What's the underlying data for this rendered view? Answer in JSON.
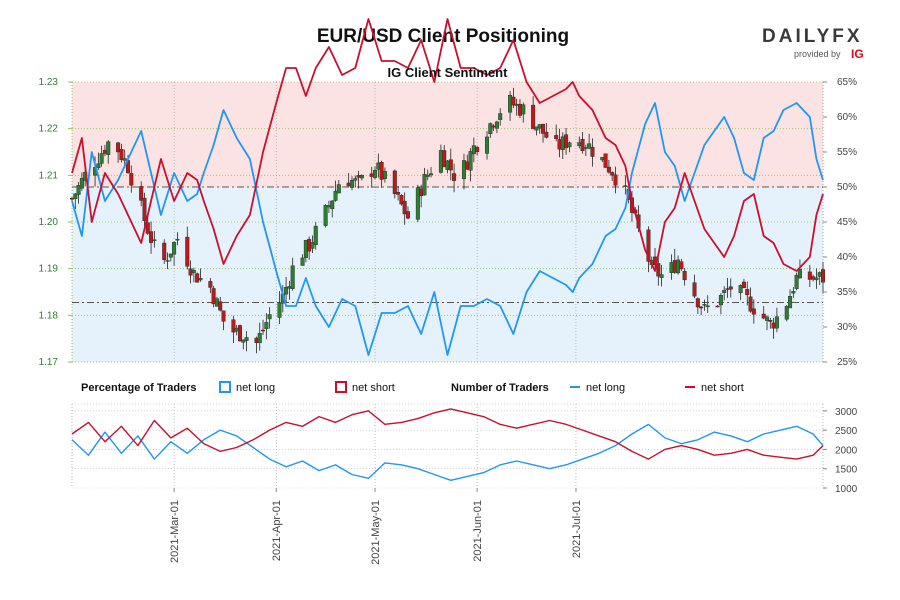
{
  "header": {
    "title": "EUR/USD Client Positioning",
    "logo_main": "DAILYFX",
    "logo_sub": "provided by",
    "logo_ig": "IG"
  },
  "colors": {
    "net_long": "#2196f3",
    "net_short": "#c8102e",
    "candle_up": "#2e7d32",
    "candle_down": "#b71c1c",
    "long_zone": "#e6f2fb",
    "short_zone": "#fbe3e3",
    "left_axis": "#2e7d32"
  },
  "legend": {
    "pct_title": "Percentage of Traders",
    "pct_long": "net long",
    "pct_short": "net short",
    "num_title": "Number of Traders",
    "num_long": "net long",
    "num_short": "net short"
  },
  "chart_data": [
    {
      "type": "line",
      "title": "IG Client Sentiment",
      "price_series": "EUR/USD daily candles",
      "x_axis_type": "date",
      "x_ticks": [
        "2021-Mar-01",
        "2021-Apr-01",
        "2021-May-01",
        "2021-Jun-01",
        "2021-Jul-01"
      ],
      "y_left_ticks": [
        "1.17",
        "1.18",
        "1.19",
        "1.20",
        "1.21",
        "1.22",
        "1.23"
      ],
      "y_left_lim": [
        1.17,
        1.23
      ],
      "y_right_ticks": [
        "25%",
        "30%",
        "35%",
        "40%",
        "45%",
        "50%",
        "55%",
        "60%",
        "65%"
      ],
      "y_right_lim": [
        25,
        65
      ],
      "reference_lines": [
        50,
        33.5
      ],
      "grid": true,
      "candles_close": [
        [
          0,
          1.205
        ],
        [
          4,
          1.21
        ],
        [
          8,
          1.214
        ],
        [
          12,
          1.218
        ],
        [
          17,
          1.212
        ],
        [
          22,
          1.2005
        ],
        [
          27,
          1.1905
        ],
        [
          32,
          1.1965
        ],
        [
          37,
          1.189
        ],
        [
          42,
          1.186
        ],
        [
          47,
          1.177
        ],
        [
          52,
          1.176
        ],
        [
          56,
          1.174
        ],
        [
          60,
          1.18
        ],
        [
          64,
          1.184
        ],
        [
          68,
          1.192
        ],
        [
          72,
          1.195
        ],
        [
          77,
          1.202
        ],
        [
          82,
          1.21
        ],
        [
          87,
          1.208
        ],
        [
          92,
          1.212
        ],
        [
          97,
          1.207
        ],
        [
          102,
          1.201
        ],
        [
          107,
          1.209
        ],
        [
          112,
          1.215
        ],
        [
          117,
          1.209
        ],
        [
          122,
          1.216
        ],
        [
          127,
          1.221
        ],
        [
          132,
          1.226
        ],
        [
          137,
          1.224
        ],
        [
          142,
          1.22
        ],
        [
          147,
          1.216
        ],
        [
          152,
          1.218
        ],
        [
          156,
          1.217
        ],
        [
          160,
          1.214
        ],
        [
          164,
          1.211
        ],
        [
          168,
          1.206
        ],
        [
          172,
          1.198
        ],
        [
          176,
          1.19
        ],
        [
          180,
          1.188
        ],
        [
          184,
          1.192
        ],
        [
          188,
          1.186
        ],
        [
          192,
          1.181
        ],
        [
          196,
          1.183
        ],
        [
          200,
          1.186
        ],
        [
          204,
          1.184
        ],
        [
          208,
          1.181
        ],
        [
          212,
          1.178
        ],
        [
          216,
          1.181
        ],
        [
          220,
          1.188
        ]
      ],
      "series": [
        {
          "name": "net long",
          "values": [
            [
              0,
              48
            ],
            [
              3,
              43
            ],
            [
              6,
              55
            ],
            [
              10,
              48
            ],
            [
              14,
              51
            ],
            [
              18,
              55
            ],
            [
              21,
              58
            ],
            [
              24,
              52
            ],
            [
              27,
              46
            ],
            [
              31,
              52
            ],
            [
              35,
              48
            ],
            [
              38,
              49
            ],
            [
              40,
              52
            ],
            [
              43,
              56
            ],
            [
              46,
              61
            ],
            [
              50,
              57
            ],
            [
              54,
              54
            ],
            [
              58,
              45
            ],
            [
              62,
              38
            ],
            [
              65,
              33
            ],
            [
              68,
              33
            ],
            [
              71,
              37
            ],
            [
              74,
              33
            ],
            [
              78,
              30
            ],
            [
              82,
              34
            ],
            [
              86,
              33
            ],
            [
              90,
              26
            ],
            [
              94,
              32
            ],
            [
              98,
              32
            ],
            [
              102,
              33
            ],
            [
              106,
              29
            ],
            [
              110,
              35
            ],
            [
              114,
              26
            ],
            [
              118,
              33
            ],
            [
              122,
              33
            ],
            [
              126,
              34
            ],
            [
              130,
              33
            ],
            [
              134,
              29
            ],
            [
              138,
              35
            ],
            [
              142,
              38
            ],
            [
              146,
              37
            ],
            [
              150,
              36
            ],
            [
              152,
              35
            ],
            [
              154,
              37
            ],
            [
              158,
              39
            ],
            [
              162,
              43
            ],
            [
              165,
              44
            ],
            [
              168,
              47
            ],
            [
              170,
              52
            ],
            [
              174,
              59
            ],
            [
              177,
              62
            ],
            [
              180,
              55
            ],
            [
              183,
              53
            ],
            [
              186,
              48
            ],
            [
              189,
              52
            ],
            [
              192,
              56
            ],
            [
              195,
              58
            ],
            [
              198,
              60
            ],
            [
              201,
              57
            ],
            [
              204,
              52
            ],
            [
              207,
              51
            ],
            [
              210,
              57
            ],
            [
              213,
              58
            ],
            [
              216,
              61
            ],
            [
              220,
              62
            ],
            [
              224,
              60
            ],
            [
              226,
              54
            ],
            [
              228,
              51
            ]
          ]
        },
        {
          "name": "net short",
          "values": [
            [
              0,
              52
            ],
            [
              3,
              57
            ],
            [
              6,
              45
            ],
            [
              10,
              52
            ],
            [
              14,
              49
            ],
            [
              18,
              45
            ],
            [
              21,
              42
            ],
            [
              24,
              48
            ],
            [
              27,
              54
            ],
            [
              31,
              48
            ],
            [
              35,
              52
            ],
            [
              38,
              51
            ],
            [
              40,
              48
            ],
            [
              43,
              44
            ],
            [
              46,
              39
            ],
            [
              50,
              43
            ],
            [
              54,
              46
            ],
            [
              58,
              55
            ],
            [
              62,
              62
            ],
            [
              65,
              67
            ],
            [
              68,
              67
            ],
            [
              71,
              63
            ],
            [
              74,
              67
            ],
            [
              78,
              70
            ],
            [
              82,
              66
            ],
            [
              86,
              67
            ],
            [
              90,
              74
            ],
            [
              94,
              68
            ],
            [
              98,
              68
            ],
            [
              102,
              67
            ],
            [
              106,
              71
            ],
            [
              110,
              65
            ],
            [
              114,
              74
            ],
            [
              118,
              67
            ],
            [
              122,
              67
            ],
            [
              126,
              66
            ],
            [
              130,
              67
            ],
            [
              134,
              71
            ],
            [
              138,
              65
            ],
            [
              142,
              62
            ],
            [
              146,
              63
            ],
            [
              150,
              64
            ],
            [
              152,
              65
            ],
            [
              154,
              63
            ],
            [
              158,
              61
            ],
            [
              162,
              57
            ],
            [
              165,
              56
            ],
            [
              168,
              53
            ],
            [
              170,
              48
            ],
            [
              174,
              41
            ],
            [
              177,
              38
            ],
            [
              180,
              45
            ],
            [
              183,
              47
            ],
            [
              186,
              52
            ],
            [
              189,
              48
            ],
            [
              192,
              44
            ],
            [
              195,
              42
            ],
            [
              198,
              40
            ],
            [
              201,
              43
            ],
            [
              204,
              48
            ],
            [
              207,
              49
            ],
            [
              210,
              43
            ],
            [
              213,
              42
            ],
            [
              216,
              39
            ],
            [
              220,
              38
            ],
            [
              224,
              40
            ],
            [
              226,
              46
            ],
            [
              228,
              49
            ]
          ]
        }
      ]
    },
    {
      "type": "line",
      "title": "",
      "x_axis_type": "date",
      "x_ticks": [
        "2021-Mar-01",
        "2021-Apr-01",
        "2021-May-01",
        "2021-Jun-01",
        "2021-Jul-01"
      ],
      "y_ticks": [
        "1000",
        "1500",
        "2000",
        "2500",
        "3000"
      ],
      "ylim": [
        1000,
        3100
      ],
      "grid": true,
      "series": [
        {
          "name": "net long",
          "values": [
            [
              0,
              2250
            ],
            [
              5,
              1850
            ],
            [
              10,
              2450
            ],
            [
              15,
              1900
            ],
            [
              20,
              2350
            ],
            [
              25,
              1750
            ],
            [
              30,
              2200
            ],
            [
              35,
              1900
            ],
            [
              40,
              2250
            ],
            [
              45,
              2500
            ],
            [
              50,
              2350
            ],
            [
              55,
              2050
            ],
            [
              60,
              1750
            ],
            [
              65,
              1550
            ],
            [
              70,
              1700
            ],
            [
              75,
              1450
            ],
            [
              80,
              1600
            ],
            [
              85,
              1350
            ],
            [
              90,
              1250
            ],
            [
              95,
              1650
            ],
            [
              100,
              1600
            ],
            [
              105,
              1500
            ],
            [
              110,
              1350
            ],
            [
              115,
              1200
            ],
            [
              120,
              1300
            ],
            [
              125,
              1400
            ],
            [
              130,
              1600
            ],
            [
              135,
              1700
            ],
            [
              140,
              1600
            ],
            [
              145,
              1500
            ],
            [
              150,
              1600
            ],
            [
              155,
              1750
            ],
            [
              160,
              1900
            ],
            [
              165,
              2100
            ],
            [
              170,
              2400
            ],
            [
              175,
              2650
            ],
            [
              180,
              2300
            ],
            [
              185,
              2150
            ],
            [
              190,
              2250
            ],
            [
              195,
              2450
            ],
            [
              200,
              2350
            ],
            [
              205,
              2200
            ],
            [
              210,
              2400
            ],
            [
              215,
              2500
            ],
            [
              220,
              2600
            ],
            [
              225,
              2400
            ],
            [
              228,
              2100
            ]
          ]
        },
        {
          "name": "net short",
          "values": [
            [
              0,
              2400
            ],
            [
              5,
              2700
            ],
            [
              10,
              2200
            ],
            [
              15,
              2600
            ],
            [
              20,
              2100
            ],
            [
              25,
              2750
            ],
            [
              30,
              2300
            ],
            [
              35,
              2550
            ],
            [
              40,
              2150
            ],
            [
              45,
              1950
            ],
            [
              50,
              2050
            ],
            [
              55,
              2250
            ],
            [
              60,
              2500
            ],
            [
              65,
              2700
            ],
            [
              70,
              2600
            ],
            [
              75,
              2850
            ],
            [
              80,
              2700
            ],
            [
              85,
              2900
            ],
            [
              90,
              3000
            ],
            [
              95,
              2650
            ],
            [
              100,
              2700
            ],
            [
              105,
              2800
            ],
            [
              110,
              2950
            ],
            [
              115,
              3050
            ],
            [
              120,
              2950
            ],
            [
              125,
              2850
            ],
            [
              130,
              2650
            ],
            [
              135,
              2550
            ],
            [
              140,
              2650
            ],
            [
              145,
              2750
            ],
            [
              150,
              2650
            ],
            [
              155,
              2500
            ],
            [
              160,
              2350
            ],
            [
              165,
              2200
            ],
            [
              170,
              1950
            ],
            [
              175,
              1750
            ],
            [
              180,
              2000
            ],
            [
              185,
              2100
            ],
            [
              190,
              2000
            ],
            [
              195,
              1850
            ],
            [
              200,
              1900
            ],
            [
              205,
              2000
            ],
            [
              210,
              1850
            ],
            [
              215,
              1800
            ],
            [
              220,
              1750
            ],
            [
              225,
              1850
            ],
            [
              228,
              2100
            ]
          ]
        }
      ]
    }
  ]
}
